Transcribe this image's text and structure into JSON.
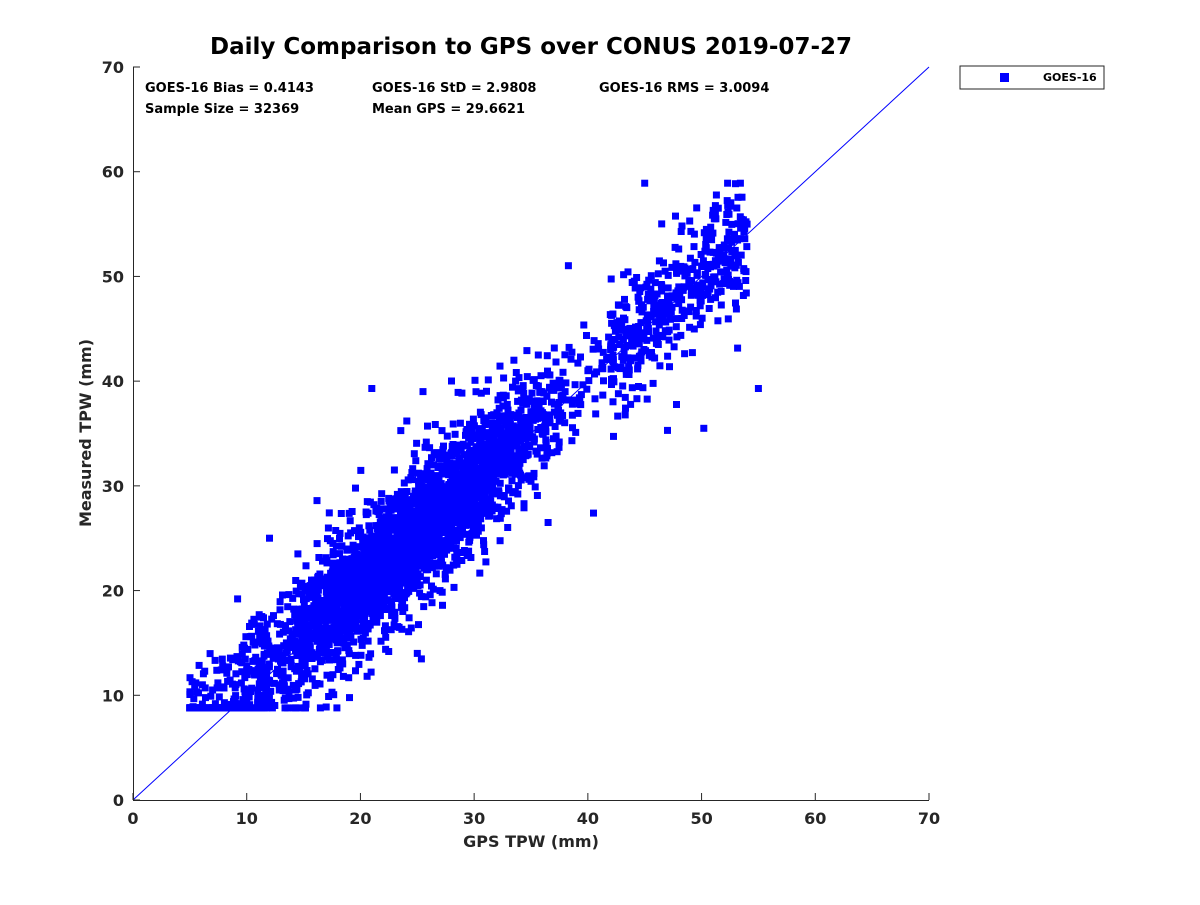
{
  "chart_data": {
    "type": "scatter",
    "title": "Daily Comparison to GPS over CONUS 2019-07-27",
    "xlabel": "GPS TPW (mm)",
    "ylabel": "Measured TPW (mm)",
    "xlim": [
      0,
      70
    ],
    "ylim": [
      0,
      70
    ],
    "xticks": [
      "0",
      "10",
      "20",
      "30",
      "40",
      "50",
      "60",
      "70"
    ],
    "yticks": [
      "0",
      "10",
      "20",
      "30",
      "40",
      "50",
      "60",
      "70"
    ],
    "grid": false,
    "legend_position": "outside-top-right",
    "series": [
      {
        "name": "GOES-16",
        "color": "#0000ff",
        "marker": "square",
        "n_points_shown": 32369,
        "approx_trend": {
          "slope": 1.0,
          "intercept": 0.4143
        },
        "approx_spread": 2.9808,
        "x_range": [
          5,
          55
        ],
        "y_range": [
          8.8,
          58.9
        ],
        "sample_points": [
          [
            5.2,
            11.3
          ],
          [
            6.1,
            11.0
          ],
          [
            7.0,
            10.5
          ],
          [
            8.0,
            10.8
          ],
          [
            9.0,
            9.2
          ],
          [
            9.2,
            19.2
          ],
          [
            10.0,
            10.4
          ],
          [
            11.0,
            12.5
          ],
          [
            12.0,
            25.0
          ],
          [
            12.5,
            14.0
          ],
          [
            14.0,
            15.5
          ],
          [
            14.5,
            23.5
          ],
          [
            16.0,
            17.0
          ],
          [
            18.0,
            19.0
          ],
          [
            18.5,
            11.8
          ],
          [
            20.0,
            21.0
          ],
          [
            20.5,
            27.5
          ],
          [
            21.0,
            39.3
          ],
          [
            22.0,
            23.0
          ],
          [
            24.0,
            25.0
          ],
          [
            25.0,
            14.0
          ],
          [
            25.5,
            39.0
          ],
          [
            26.0,
            27.0
          ],
          [
            27.0,
            20.0
          ],
          [
            28.0,
            29.0
          ],
          [
            30.0,
            31.0
          ],
          [
            32.0,
            33.0
          ],
          [
            33.5,
            42.0
          ],
          [
            34.0,
            35.0
          ],
          [
            36.0,
            37.0
          ],
          [
            36.5,
            26.5
          ],
          [
            38.0,
            39.0
          ],
          [
            40.0,
            41.0
          ],
          [
            40.5,
            27.4
          ],
          [
            42.0,
            43.0
          ],
          [
            44.0,
            45.0
          ],
          [
            45.0,
            58.9
          ],
          [
            46.0,
            47.0
          ],
          [
            47.0,
            35.3
          ],
          [
            48.0,
            49.0
          ],
          [
            50.0,
            51.0
          ],
          [
            50.2,
            35.5
          ],
          [
            52.0,
            53.0
          ],
          [
            54.0,
            55.0
          ],
          [
            55.0,
            39.3
          ]
        ]
      }
    ],
    "reference_line": {
      "label": "1:1",
      "from": [
        0,
        0
      ],
      "to": [
        70,
        70
      ],
      "color": "#0000ff"
    },
    "annotations": [
      {
        "label": "GOES-16 Bias = 0.4143"
      },
      {
        "label": "GOES-16 StD = 2.9808"
      },
      {
        "label": "GOES-16 RMS = 3.0094"
      },
      {
        "label": "Sample Size = 32369"
      },
      {
        "label": "Mean GPS = 29.6621"
      }
    ]
  }
}
